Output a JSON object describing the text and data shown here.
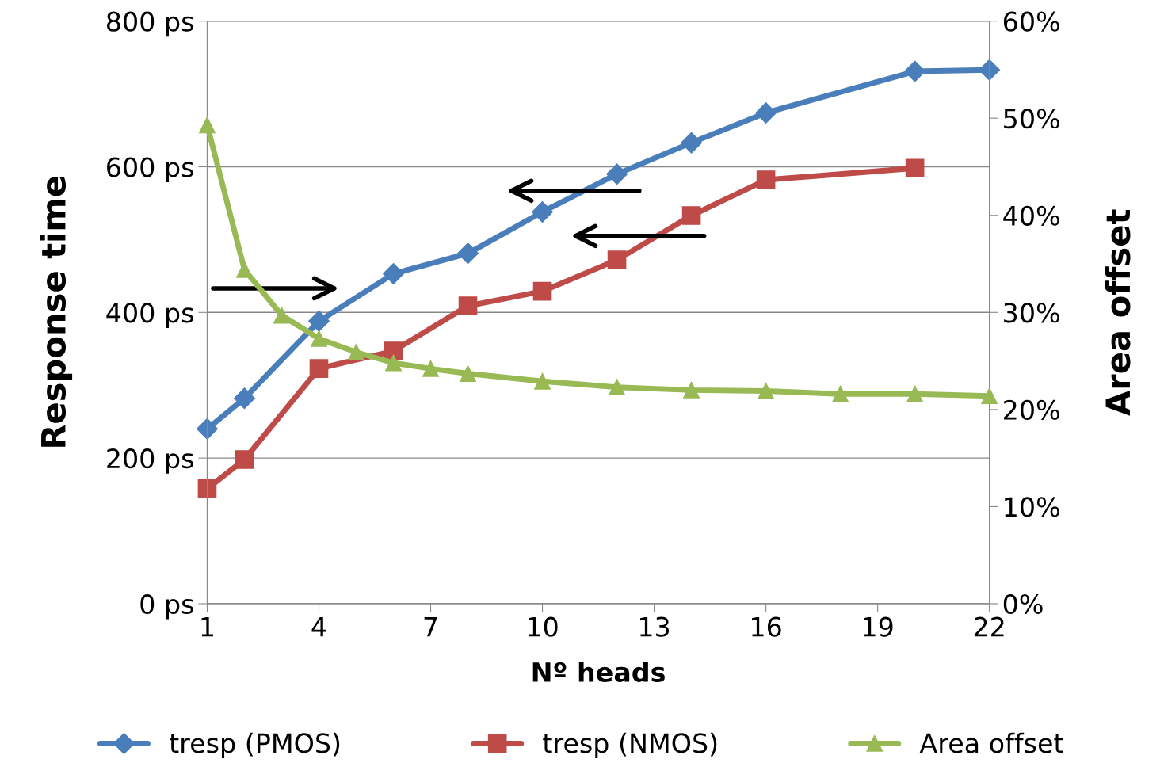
{
  "chart_data": {
    "type": "line",
    "xlabel": "Nº heads",
    "ylabel": "Response time",
    "y2label": "Area offset",
    "xlim": [
      1,
      22
    ],
    "xticks": [
      1,
      4,
      7,
      10,
      13,
      16,
      19,
      22
    ],
    "ylim": [
      0,
      800
    ],
    "yticks": [
      {
        "value": 0,
        "label": "0 ps"
      },
      {
        "value": 200,
        "label": "200 ps"
      },
      {
        "value": 400,
        "label": "400 ps"
      },
      {
        "value": 600,
        "label": "600 ps"
      },
      {
        "value": 800,
        "label": "800 ps"
      }
    ],
    "y2lim": [
      0,
      60
    ],
    "y2ticks": [
      {
        "value": 0,
        "label": "0%"
      },
      {
        "value": 10,
        "label": "10%"
      },
      {
        "value": 20,
        "label": "20%"
      },
      {
        "value": 30,
        "label": "30%"
      },
      {
        "value": 40,
        "label": "40%"
      },
      {
        "value": 50,
        "label": "50%"
      },
      {
        "value": 60,
        "label": "60%"
      }
    ],
    "grid": "y",
    "legend": "bottom",
    "series": [
      {
        "name": "tresp (PMOS)",
        "color": "#4a7ebb",
        "marker": "diamond",
        "x": [
          1,
          2,
          4,
          6,
          8,
          10,
          12,
          14,
          16,
          20,
          22
        ],
        "values": [
          240,
          282,
          388,
          453,
          481,
          538,
          590,
          633,
          674,
          731,
          733
        ]
      },
      {
        "name": "tresp (NMOS)",
        "color": "#be4b48",
        "marker": "square",
        "x": [
          1,
          2,
          4,
          6,
          8,
          10,
          12,
          14,
          16,
          20
        ],
        "values": [
          158,
          198,
          323,
          347,
          409,
          429,
          472,
          533,
          582,
          598
        ]
      },
      {
        "name": "Area offset",
        "color": "#98b954",
        "marker": "triangle",
        "axis": "y2",
        "x": [
          1,
          2,
          3,
          4,
          5,
          6,
          7,
          8,
          10,
          12,
          14,
          16,
          18,
          20,
          22
        ],
        "values": [
          49.3,
          34.4,
          29.7,
          27.3,
          25.9,
          24.8,
          24.2,
          23.7,
          22.9,
          22.3,
          22.0,
          21.9,
          21.6,
          21.6,
          21.4
        ]
      }
    ]
  }
}
